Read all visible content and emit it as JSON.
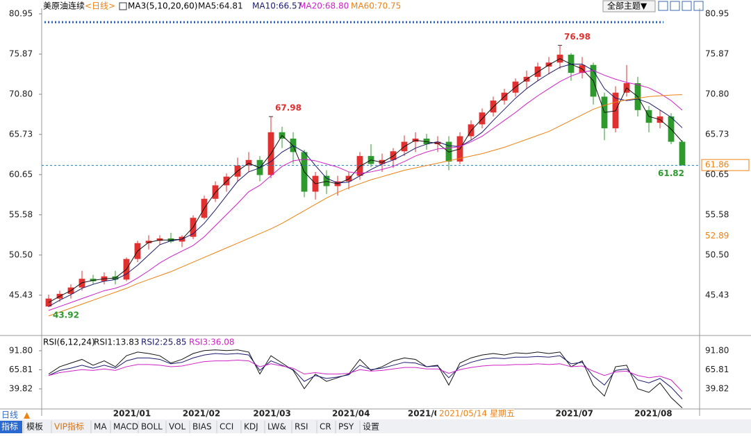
{
  "chart_data": [
    {
      "type": "candlestick",
      "title": "美原油连续",
      "subtitle": "<日线>",
      "indicator": "MA3(5,10,20,60)",
      "up_color": "#e0302f",
      "down_color": "#2e9a2e",
      "xlim": [
        -0.5,
        57.5
      ],
      "ylim": [
        40.34,
        81.65
      ],
      "yticks": [
        80.95,
        75.87,
        {
          "value": 70.8,
          "label": "70.80"
        },
        65.73,
        60.65,
        55.58,
        {
          "value": 50.5,
          "label": "50.50"
        },
        45.43
      ],
      "ohlc": [
        [
          44,
          45.5,
          43.92,
          45
        ],
        [
          45,
          46,
          44.6,
          45.6
        ],
        [
          45.6,
          46.8,
          45,
          46.4
        ],
        [
          46.4,
          48.5,
          46,
          47.5
        ],
        [
          47.5,
          48,
          46.8,
          47.2
        ],
        [
          47.2,
          48.3,
          46.8,
          47.8
        ],
        [
          47.8,
          48.5,
          46.8,
          47.4
        ],
        [
          47.4,
          50.2,
          47.2,
          50
        ],
        [
          50,
          52.3,
          49.6,
          52
        ],
        [
          52,
          53,
          51.2,
          52.3
        ],
        [
          52.3,
          53,
          51.8,
          52.6
        ],
        [
          52.6,
          53.3,
          52,
          52.2
        ],
        [
          52.2,
          53,
          51.5,
          52.8
        ],
        [
          52.8,
          55.5,
          52.5,
          55.2
        ],
        [
          55.2,
          58,
          55,
          57.6
        ],
        [
          57.6,
          59.8,
          57.2,
          59.3
        ],
        [
          59.3,
          60.8,
          58.5,
          60.4
        ],
        [
          60.4,
          62.8,
          59.8,
          61.8
        ],
        [
          61.8,
          63.5,
          61,
          62.5
        ],
        [
          62.5,
          63,
          59.8,
          60.6
        ],
        [
          60.6,
          67.98,
          60.2,
          66
        ],
        [
          66,
          66.7,
          64,
          65.2
        ],
        [
          65.2,
          66,
          62,
          63.5
        ],
        [
          63.5,
          63.8,
          57.8,
          58.5
        ],
        [
          58.5,
          61,
          57.5,
          60.5
        ],
        [
          60.5,
          61.2,
          58.2,
          59.2
        ],
        [
          59.2,
          60.5,
          58,
          59.8
        ],
        [
          59.8,
          61,
          58.8,
          60.5
        ],
        [
          60.5,
          63.5,
          60,
          63
        ],
        [
          63,
          64.5,
          61.6,
          62
        ],
        [
          62,
          63.3,
          61,
          62.5
        ],
        [
          62.5,
          64,
          61.5,
          63.6
        ],
        [
          63.6,
          65.6,
          63,
          64.8
        ],
        [
          64.8,
          66,
          63.5,
          65.2
        ],
        [
          65.2,
          65.8,
          63.8,
          64.5
        ],
        [
          64.5,
          65.5,
          63.5,
          64.8
        ],
        [
          64.8,
          65.5,
          61.2,
          62.3
        ],
        [
          62.3,
          66,
          62,
          65.5
        ],
        [
          65.5,
          67.5,
          65,
          67
        ],
        [
          67,
          69,
          66.5,
          68.5
        ],
        [
          68.5,
          70.5,
          68,
          70
        ],
        [
          70,
          71.5,
          69.5,
          71
        ],
        [
          71,
          72.8,
          70.5,
          72.4
        ],
        [
          72.4,
          73.8,
          71.5,
          73
        ],
        [
          73,
          74.8,
          72.5,
          74.3
        ],
        [
          74.3,
          75.5,
          73.3,
          74.8
        ],
        [
          74.8,
          76.98,
          74,
          75.8
        ],
        [
          75.8,
          76,
          72.5,
          73.5
        ],
        [
          73.5,
          75.5,
          72.8,
          74.5
        ],
        [
          74.5,
          74.8,
          69.5,
          70.5
        ],
        [
          70.5,
          71,
          65,
          66.5
        ],
        [
          66.5,
          71.8,
          66,
          71
        ],
        [
          71,
          74.5,
          70.5,
          72.2
        ],
        [
          72.2,
          73,
          68,
          68.8
        ],
        [
          68.8,
          69.3,
          66,
          67.2
        ],
        [
          67.2,
          68.8,
          66.5,
          68
        ],
        [
          68,
          68.4,
          64.5,
          64.8
        ],
        [
          64.8,
          65,
          61.82,
          61.82
        ]
      ],
      "series": [
        {
          "name": "MA5:64.81",
          "color": "#111111",
          "values": [
            44.5,
            45.3,
            46,
            47,
            47.3,
            47.5,
            47.6,
            48.7,
            51,
            52.1,
            52.4,
            52.4,
            52.5,
            54,
            56.4,
            58.4,
            59.8,
            61.1,
            62.1,
            61.5,
            63.3,
            65.6,
            64.3,
            61,
            59.5,
            59.8,
            59.5,
            60.1,
            61.7,
            62.5,
            62.2,
            63,
            64.2,
            65,
            64.8,
            64.6,
            63.5,
            63.9,
            66.2,
            67.7,
            69.2,
            70.5,
            71.7,
            72.7,
            73.6,
            74.5,
            75.3,
            74.6,
            74,
            72.5,
            68.5,
            68.7,
            71.6,
            70.5,
            68,
            67.6,
            66.4,
            64.81
          ]
        },
        {
          "name": "MA10:66.57",
          "color": "#1a1a6e",
          "values": [
            44,
            44.8,
            45.5,
            46.3,
            46.8,
            47.2,
            47.4,
            48.1,
            49.2,
            50.5,
            51.8,
            52.3,
            52.5,
            53.2,
            54.5,
            56.2,
            58,
            59.8,
            61,
            61.5,
            62.3,
            63.5,
            64.3,
            63.5,
            61.8,
            60.2,
            59.6,
            59.7,
            60.5,
            61.3,
            62,
            62.5,
            63.2,
            64,
            64.5,
            64.8,
            64.3,
            64.2,
            65,
            66,
            67.5,
            68.9,
            70.3,
            71.5,
            72.5,
            73.4,
            74.2,
            74.6,
            74.6,
            73.8,
            71.5,
            70.3,
            70,
            70.2,
            69.7,
            68.8,
            67.9,
            66.57
          ]
        },
        {
          "name": "MA20:68.80",
          "color": "#d020c8",
          "values": [
            43.5,
            44,
            44.5,
            45,
            45.5,
            46,
            46.3,
            46.8,
            47.6,
            48.5,
            49.5,
            50.3,
            51,
            51.7,
            52.8,
            54.2,
            55.6,
            57,
            58.5,
            59.3,
            60.5,
            61.7,
            62.4,
            62.6,
            62.4,
            62,
            61.6,
            61,
            60.8,
            61,
            61.3,
            61.7,
            62.3,
            63,
            63.5,
            63.9,
            64,
            64.2,
            64.8,
            65.5,
            66.5,
            67.5,
            68.5,
            69.6,
            70.6,
            71.5,
            72.4,
            73.1,
            73.6,
            73.8,
            73.2,
            72.7,
            72.3,
            72,
            71.6,
            70.9,
            70,
            68.8
          ]
        },
        {
          "name": "MA60:70.75",
          "color": "#f08010",
          "values": [
            42.8,
            43.3,
            43.8,
            44.3,
            44.8,
            45.3,
            45.8,
            46.3,
            46.9,
            47.4,
            47.9,
            48.4,
            49,
            49.6,
            50.2,
            50.8,
            51.4,
            52,
            52.6,
            53.2,
            53.8,
            54.5,
            55.3,
            56.1,
            56.9,
            57.7,
            58.4,
            59,
            59.5,
            60,
            60.4,
            60.8,
            61.2,
            61.5,
            61.8,
            62.1,
            62.4,
            62.7,
            63,
            63.3,
            63.7,
            64.1,
            64.6,
            65.1,
            65.6,
            66.1,
            66.8,
            67.5,
            68.2,
            68.9,
            69.4,
            69.8,
            70.1,
            70.3,
            70.5,
            70.6,
            70.7,
            70.75
          ]
        }
      ],
      "annotations": [
        {
          "candle": 0,
          "value": 43.92,
          "color": "#2e9a2e"
        },
        {
          "candle": 20,
          "value": 67.98,
          "color": "#e0302f"
        },
        {
          "candle": 46,
          "value": 76.98,
          "color": "#e0302f"
        },
        {
          "candle": 57,
          "value": 61.82,
          "color": "#2e9a2e"
        }
      ],
      "right_tags": [
        {
          "value": 61.86,
          "color": "#f08010",
          "boxed": true
        },
        {
          "value": 52.89,
          "color": "#f08010",
          "boxed": false
        }
      ],
      "xticks": [
        {
          "value": 7.5,
          "label": "2021/01"
        },
        {
          "value": 13.75,
          "label": "2021/02"
        },
        {
          "value": 20.1,
          "label": "2021/03"
        },
        {
          "value": 27.2,
          "label": "2021/04"
        },
        {
          "value": 33.75,
          "label": "2021/0"
        },
        {
          "value": 47.3,
          "label": "2021/07"
        },
        {
          "value": 54.4,
          "label": "2021/08"
        }
      ]
    },
    {
      "type": "line",
      "title": "RSI(6,12,24)",
      "xlim": [
        -0.5,
        57.5
      ],
      "ylim": [
        12.4,
        106.9
      ],
      "yticks": [
        {
          "value": 91.8,
          "label": "91.80"
        },
        65.81,
        39.82
      ],
      "series": [
        {
          "name": "RSI1:13.83",
          "color": "#111111",
          "values": [
            60,
            70,
            75,
            80,
            72,
            78,
            70,
            85,
            90,
            88,
            85,
            75,
            80,
            88,
            92,
            93,
            92,
            93,
            90,
            60,
            85,
            75,
            65,
            40,
            60,
            50,
            55,
            60,
            80,
            65,
            70,
            78,
            82,
            80,
            70,
            72,
            45,
            75,
            82,
            86,
            88,
            86,
            89,
            88,
            90,
            88,
            90,
            70,
            78,
            45,
            30,
            70,
            72,
            40,
            35,
            48,
            28,
            13.83
          ]
        },
        {
          "name": "RSI2:25.85",
          "color": "#1a1a6e",
          "values": [
            58,
            65,
            68,
            72,
            68,
            72,
            68,
            78,
            82,
            82,
            80,
            74,
            76,
            82,
            86,
            88,
            87,
            88,
            86,
            65,
            78,
            72,
            66,
            50,
            58,
            54,
            56,
            59,
            72,
            66,
            68,
            72,
            76,
            75,
            70,
            71,
            55,
            70,
            76,
            80,
            82,
            81,
            83,
            83,
            84,
            83,
            85,
            74,
            76,
            57,
            45,
            65,
            67,
            52,
            48,
            54,
            42,
            25.85
          ]
        },
        {
          "name": "RSI3:36.08",
          "color": "#d020c8",
          "values": [
            58,
            62,
            64,
            66,
            65,
            67,
            65,
            70,
            73,
            73,
            72,
            70,
            71,
            74,
            77,
            78,
            78,
            79,
            78,
            70,
            74,
            71,
            68,
            60,
            62,
            60,
            60,
            61,
            66,
            64,
            65,
            67,
            69,
            69,
            67,
            67,
            61,
            66,
            69,
            71,
            72,
            72,
            73,
            73,
            74,
            73,
            74,
            70,
            71,
            64,
            58,
            63,
            64,
            58,
            55,
            57,
            52,
            36.08
          ]
        }
      ]
    }
  ],
  "ui": {
    "theme_button": "全部主题▼",
    "date_tooltip": "2021/05/14 星期五",
    "period_tab": "日线",
    "period_arrow": "▲",
    "tabs": [
      "指标",
      "模板",
      "VIP指标",
      "MA",
      "MACD",
      "BOLL",
      "VOL",
      "BIAS",
      "CCI",
      "KDJ",
      "LW&",
      "RSI",
      "CR",
      "PSY",
      "设置"
    ]
  }
}
